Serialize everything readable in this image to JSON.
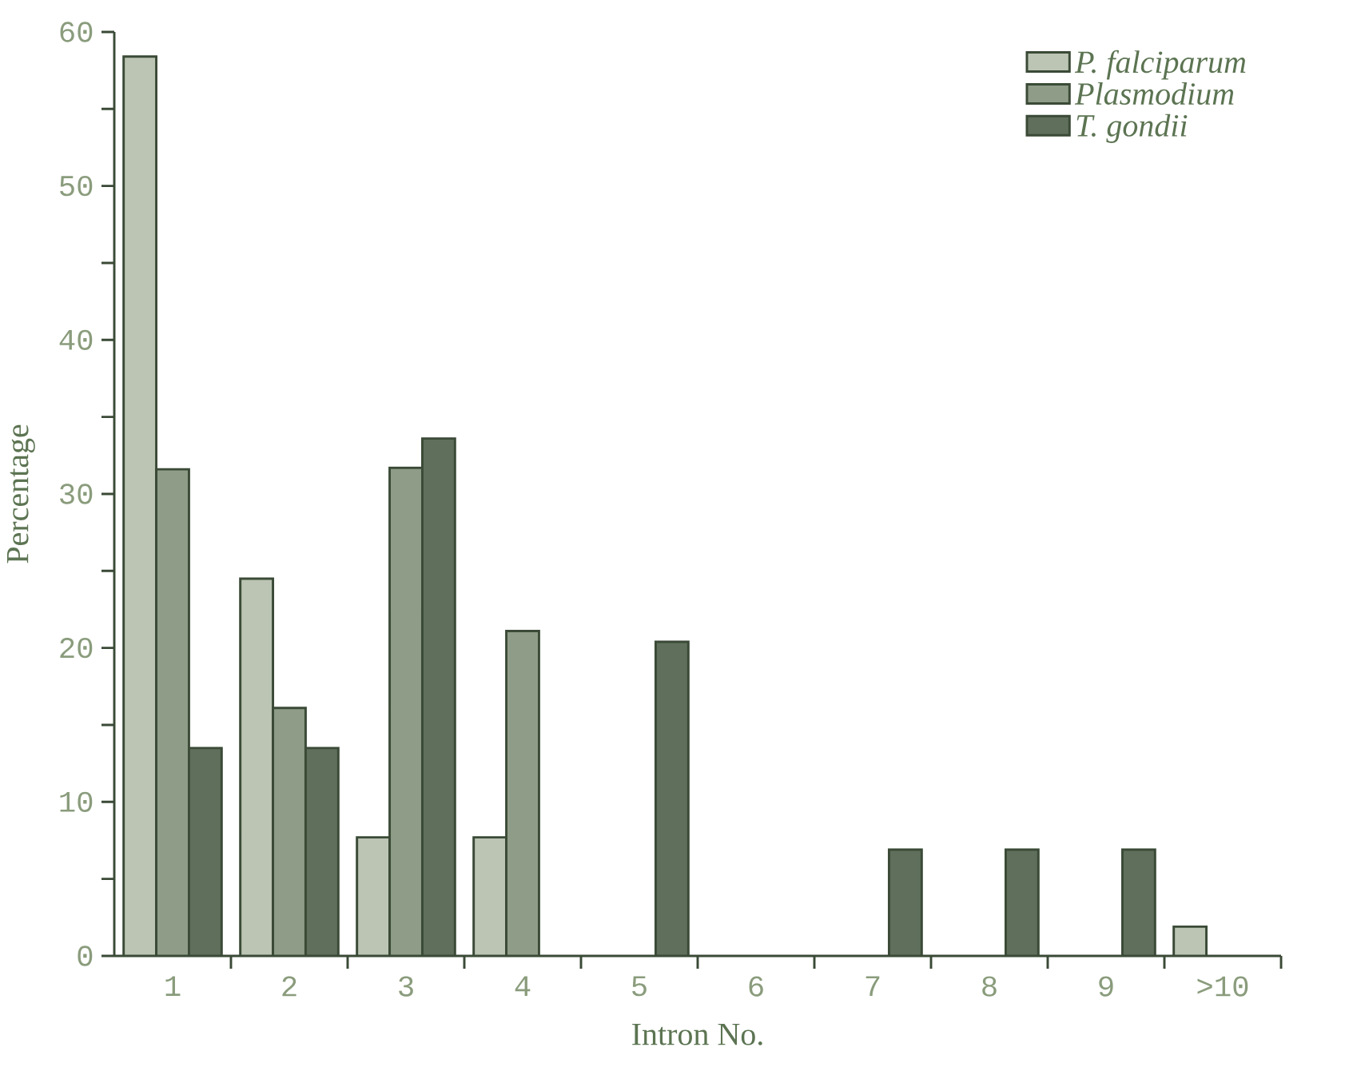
{
  "chart_data": {
    "type": "bar",
    "xlabel": "Intron No.",
    "ylabel": "Percentage",
    "categories": [
      "1",
      "2",
      "3",
      "4",
      "5",
      "6",
      "7",
      "8",
      "9",
      ">10"
    ],
    "series": [
      {
        "name": "P. falciparum",
        "color": "#bcc4b4",
        "values": [
          58.4,
          24.5,
          7.7,
          7.7,
          null,
          null,
          null,
          null,
          null,
          1.9
        ]
      },
      {
        "name": "Plasmodium",
        "color": "#8e9c88",
        "values": [
          31.6,
          16.1,
          31.7,
          21.1,
          null,
          null,
          null,
          null,
          null,
          null
        ]
      },
      {
        "name": "T. gondii",
        "color": "#5f6f5c",
        "values": [
          13.5,
          13.5,
          33.6,
          null,
          20.4,
          null,
          6.9,
          6.9,
          6.9,
          null
        ]
      }
    ],
    "ylim": [
      0,
      60
    ],
    "yticks": [
      0,
      10,
      20,
      30,
      40,
      50,
      60
    ],
    "legend": "top right",
    "grid": false
  }
}
